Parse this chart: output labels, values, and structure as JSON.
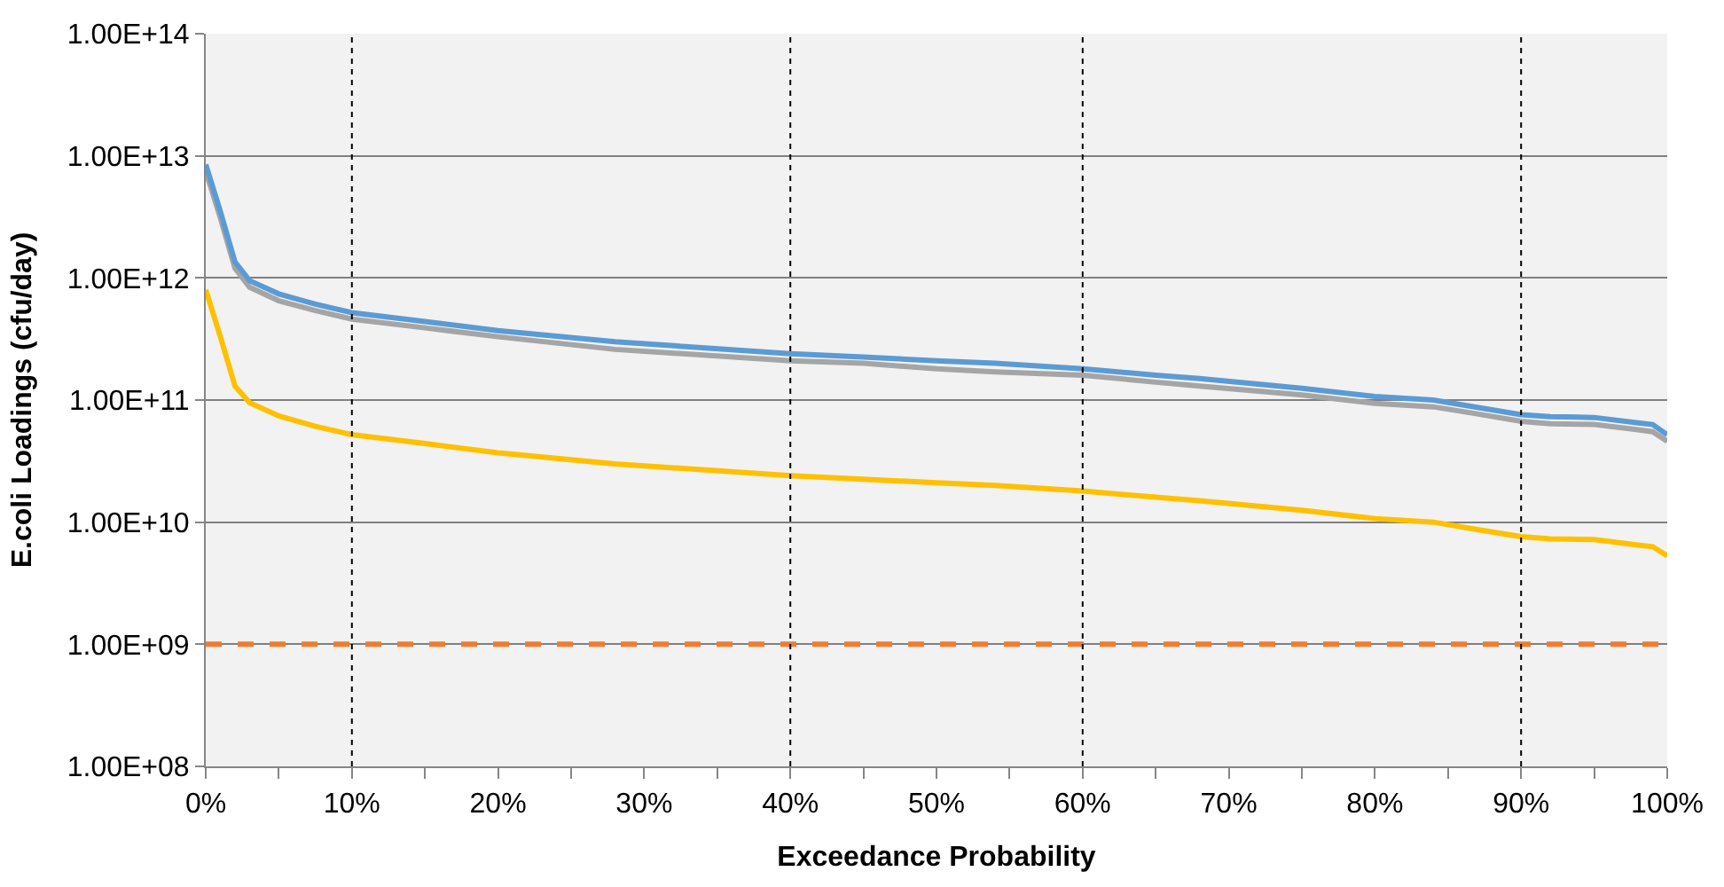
{
  "chart_data": {
    "type": "line",
    "xlabel": "Exceedance Probability",
    "ylabel": "E.coli Loadings (cfu/day)",
    "log": "y",
    "grid": "y",
    "marker": "none",
    "x": [
      0,
      1,
      2,
      3,
      5,
      7.5,
      10,
      15,
      20,
      28,
      40,
      45,
      50,
      54,
      60,
      65,
      68,
      75,
      80,
      84,
      87,
      90,
      92,
      95,
      98,
      99,
      100
    ],
    "series": [
      {
        "color": "#a5a5a5",
        "values": [
          7500000000000.0,
          3100000000000.0,
          1200000000000.0,
          840000000000.0,
          650000000000.0,
          540000000000.0,
          460000000000.0,
          390000000000.0,
          330000000000.0,
          260000000000.0,
          210000000000.0,
          200000000000.0,
          180000000000.0,
          170000000000.0,
          160000000000.0,
          140000000000.0,
          130000000000.0,
          110000000000.0,
          94000000000.0,
          88000000000.0,
          77000000000.0,
          67000000000.0,
          64000000000.0,
          63000000000.0,
          57000000000.0,
          55000000000.0,
          46000000000.0
        ]
      },
      {
        "color": "#5b9bd5",
        "values": [
          8500000000000.0,
          3500000000000.0,
          1350000000000.0,
          950000000000.0,
          740000000000.0,
          610000000000.0,
          520000000000.0,
          440000000000.0,
          370000000000.0,
          300000000000.0,
          240000000000.0,
          225000000000.0,
          210000000000.0,
          200000000000.0,
          180000000000.0,
          160000000000.0,
          150000000000.0,
          125000000000.0,
          107000000000.0,
          100000000000.0,
          87000000000.0,
          76000000000.0,
          73000000000.0,
          72000000000.0,
          65000000000.0,
          63000000000.0,
          52000000000.0
        ]
      },
      {
        "color": "#ffc000",
        "values": [
          800000000000.0,
          330000000000.0,
          130000000000.0,
          95000000000.0,
          74000000000.0,
          61000000000.0,
          52000000000.0,
          44000000000.0,
          37000000000.0,
          30000000000.0,
          24000000000.0,
          22500000000.0,
          21000000000.0,
          20000000000.0,
          18000000000.0,
          16000000000.0,
          15000000000.0,
          12500000000.0,
          10700000000.0,
          10000000000.0,
          8700000000.0,
          7600000000.0,
          7300000000.0,
          7200000000.0,
          6500000000.0,
          6300000000.0,
          5300000000.0
        ]
      },
      {
        "color": "#ed7d31",
        "line_style": "dashed",
        "values": [
          1000000000.0,
          1000000000.0,
          1000000000.0,
          1000000000.0,
          1000000000.0,
          1000000000.0,
          1000000000.0,
          1000000000.0,
          1000000000.0,
          1000000000.0,
          1000000000.0,
          1000000000.0,
          1000000000.0,
          1000000000.0,
          1000000000.0,
          1000000000.0,
          1000000000.0,
          1000000000.0,
          1000000000.0,
          1000000000.0,
          1000000000.0,
          1000000000.0,
          1000000000.0,
          1000000000.0,
          1000000000.0,
          1000000000.0,
          1000000000.0
        ]
      }
    ],
    "ref_lines": [
      {
        "axis": "x",
        "value": 10,
        "color": "#000000",
        "line_style": "dotted"
      },
      {
        "axis": "x",
        "value": 40,
        "color": "#000000",
        "line_style": "dotted"
      },
      {
        "axis": "x",
        "value": 60,
        "color": "#000000",
        "line_style": "dotted"
      },
      {
        "axis": "x",
        "value": 90,
        "color": "#000000",
        "line_style": "dotted"
      }
    ],
    "xlim": [
      0,
      100
    ],
    "xticks": [
      {
        "value": 0,
        "label": "0%"
      },
      {
        "value": 5,
        "label": null
      },
      {
        "value": 10,
        "label": "10%"
      },
      {
        "value": 15,
        "label": null
      },
      {
        "value": 20,
        "label": "20%"
      },
      {
        "value": 25,
        "label": null
      },
      {
        "value": 30,
        "label": "30%"
      },
      {
        "value": 35,
        "label": null
      },
      {
        "value": 40,
        "label": "40%"
      },
      {
        "value": 45,
        "label": null
      },
      {
        "value": 50,
        "label": "50%"
      },
      {
        "value": 55,
        "label": null
      },
      {
        "value": 60,
        "label": "60%"
      },
      {
        "value": 65,
        "label": null
      },
      {
        "value": 70,
        "label": "70%"
      },
      {
        "value": 75,
        "label": null
      },
      {
        "value": 80,
        "label": "80%"
      },
      {
        "value": 85,
        "label": null
      },
      {
        "value": 90,
        "label": "90%"
      },
      {
        "value": 95,
        "label": null
      },
      {
        "value": 100,
        "label": "100%"
      }
    ],
    "ylim": [
      100000000.0,
      100000000000000.0
    ],
    "yticks": [
      {
        "value": 100000000.0,
        "label": "1.00E+08"
      },
      {
        "value": 1000000000.0,
        "label": "1.00E+09"
      },
      {
        "value": 10000000000.0,
        "label": "1.00E+10"
      },
      {
        "value": 100000000000.0,
        "label": "1.00E+11"
      },
      {
        "value": 1000000000000.0,
        "label": "1.00E+12"
      },
      {
        "value": 10000000000000.0,
        "label": "1.00E+13"
      },
      {
        "value": 100000000000000.0,
        "label": "1.00E+14"
      }
    ]
  }
}
